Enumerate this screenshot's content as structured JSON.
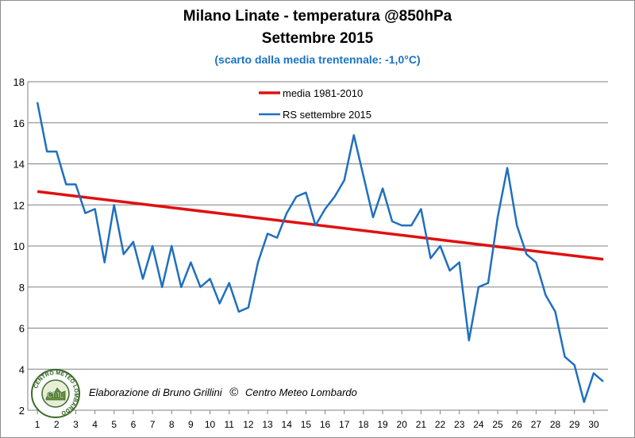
{
  "header": {
    "title": "Milano Linate - temperatura @850hPa",
    "subtitle": "Settembre 2015",
    "note": "(scarto dalla media trentennale: -1,0°C)"
  },
  "credit": {
    "text": "Elaborazione di Bruno Grillini",
    "copyright": "©",
    "org": "Centro Meteo Lombardo"
  },
  "logo": {
    "ring_text": "CENTRO METEO LOMBARDO",
    "center_text": "CML"
  },
  "colors": {
    "media": "#e01010",
    "rs": "#1f6fc0",
    "grid": "#808080",
    "subtitle": "#1a73c6"
  },
  "chart_data": {
    "type": "line",
    "ylim": [
      2,
      18
    ],
    "yticks": [
      2,
      4,
      6,
      8,
      10,
      12,
      14,
      16,
      18
    ],
    "xlim": [
      1,
      30.5
    ],
    "xticks": [
      "1",
      "2",
      "3",
      "4",
      "5",
      "6",
      "7",
      "8",
      "9",
      "10",
      "11",
      "12",
      "13",
      "14",
      "15",
      "16",
      "17",
      "18",
      "19",
      "20",
      "21",
      "22",
      "23",
      "24",
      "25",
      "26",
      "27",
      "28",
      "29",
      "30"
    ],
    "grid": "horizontal",
    "legend_position": "top-center",
    "series": [
      {
        "name": "media 1981-2010",
        "color": "#e01010",
        "x": [
          1,
          30.5
        ],
        "values": [
          12.65,
          9.35
        ]
      },
      {
        "name": "RS settembre 2015",
        "color": "#1f6fc0",
        "x": [
          1,
          1.5,
          2,
          2.5,
          3,
          3.5,
          4,
          4.5,
          5,
          5.5,
          6,
          6.5,
          7,
          7.5,
          8,
          8.5,
          9,
          9.5,
          10,
          10.5,
          11,
          11.5,
          12,
          12.5,
          13,
          13.5,
          14,
          14.5,
          15,
          15.5,
          16,
          16.5,
          17,
          17.5,
          18,
          18.5,
          19,
          19.5,
          20,
          20.5,
          21,
          21.5,
          22,
          22.5,
          23,
          23.5,
          24,
          24.5,
          25,
          25.5,
          26,
          26.5,
          27,
          27.5,
          28,
          28.5,
          29,
          29.5,
          30,
          30.5
        ],
        "values": [
          17,
          14.6,
          14.6,
          13,
          13,
          11.6,
          11.8,
          9.2,
          12,
          9.6,
          10.2,
          8.4,
          10,
          8,
          10,
          8,
          9.2,
          8,
          8.4,
          7.2,
          8.2,
          6.8,
          7,
          9.2,
          10.6,
          10.4,
          11.6,
          12.4,
          12.6,
          11,
          11.8,
          12.4,
          13.2,
          15.4,
          13.4,
          11.4,
          12.8,
          11.2,
          11,
          11,
          11.8,
          9.4,
          10,
          8.8,
          9.2,
          5.4,
          8,
          8.2,
          11.4,
          13.8,
          11,
          9.6,
          9.2,
          7.6,
          6.8,
          4.6,
          4.2,
          2.4,
          3.8,
          3.4
        ]
      }
    ]
  }
}
